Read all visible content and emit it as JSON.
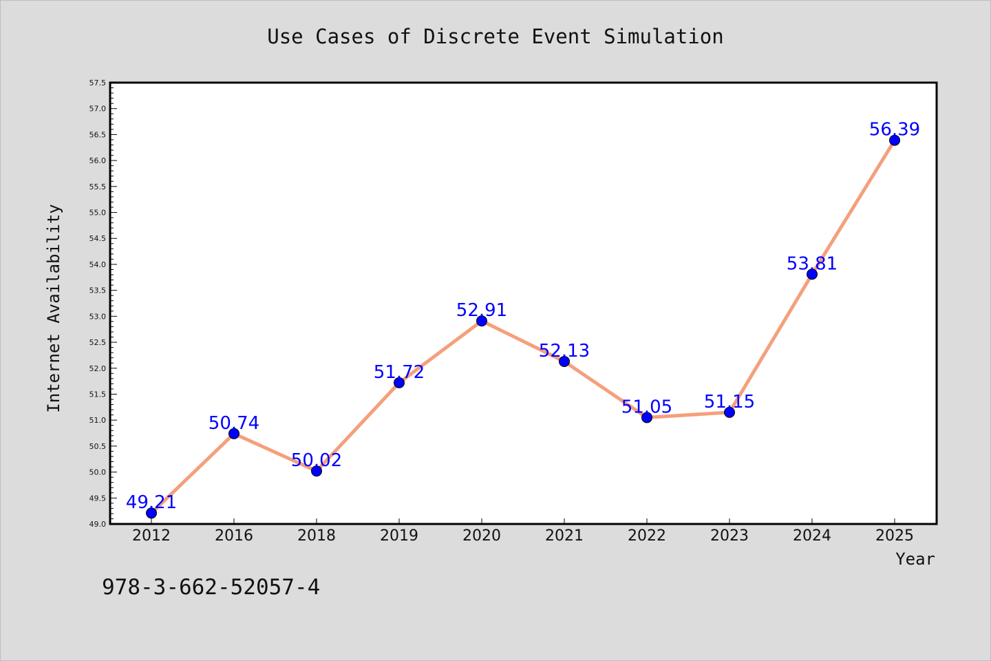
{
  "chart_data": {
    "type": "line",
    "title": "Use Cases of Discrete Event Simulation",
    "xlabel": "Year",
    "ylabel": "Internet Availability",
    "categories": [
      "2012",
      "2016",
      "2018",
      "2019",
      "2020",
      "2021",
      "2022",
      "2023",
      "2024",
      "2025"
    ],
    "series": [
      {
        "values": [
          49.21,
          50.74,
          50.02,
          51.72,
          52.91,
          52.13,
          51.05,
          51.15,
          53.81,
          56.39
        ],
        "labels": [
          "49.21",
          "50.74",
          "50.02",
          "51.72",
          "52.91",
          "52.13",
          "51.05",
          "51.15",
          "53.81",
          "56.39"
        ]
      }
    ],
    "ylim": [
      49.0,
      57.5
    ],
    "yticks": [
      "49.0",
      "49.5",
      "50.0",
      "50.5",
      "51.0",
      "51.5",
      "52.0",
      "52.5",
      "53.0",
      "53.5",
      "54.0",
      "54.5",
      "55.0",
      "55.5",
      "56.0",
      "56.5",
      "57.0",
      "57.5"
    ],
    "grid": false,
    "legend": "none",
    "colors": {
      "line": "#f4a07c",
      "marker": "#0000ff",
      "data_label": "#0000ff",
      "plot_background": "#ffffff",
      "figure_background": "#dcdcdc"
    }
  },
  "footer": {
    "isbn": "978-3-662-52057-4"
  }
}
